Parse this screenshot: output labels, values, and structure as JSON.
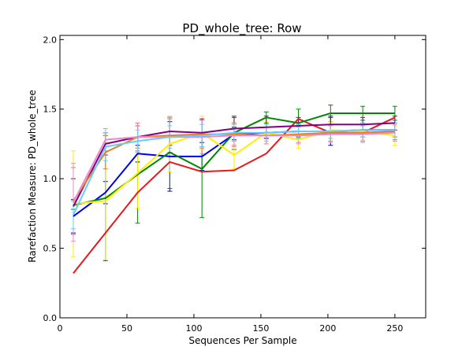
{
  "chart_data": {
    "type": "line",
    "title": "PD_whole_tree: Row",
    "xlabel": "Sequences Per Sample",
    "ylabel": "Rarefaction Measure: PD_whole_tree",
    "xlim": [
      0,
      273
    ],
    "ylim": [
      0.0,
      2.03
    ],
    "xticks": [
      0,
      50,
      100,
      150,
      200,
      250
    ],
    "xtick_labels": [
      "0",
      "50",
      "100",
      "150",
      "200",
      "250"
    ],
    "yticks": [
      0.0,
      0.5,
      1.0,
      1.5,
      2.0
    ],
    "ytick_labels": [
      "0.0",
      "0.5",
      "1.0",
      "1.5",
      "2.0"
    ],
    "grid": false,
    "x": [
      10,
      34,
      58,
      82,
      106,
      130,
      154,
      178,
      202,
      226,
      250
    ],
    "series": [
      {
        "color": "#e41a1c",
        "values": [
          0.32,
          0.61,
          0.9,
          1.12,
          1.05,
          1.06,
          1.18,
          1.43,
          1.33,
          1.33,
          1.44
        ],
        "err": [
          0.0,
          0.0,
          0.0,
          0.0,
          0.0,
          0.0,
          0.0,
          0.0,
          0.0,
          0.0,
          0.0
        ]
      },
      {
        "color": "#0000ee",
        "values": [
          0.73,
          0.9,
          1.18,
          1.16,
          1.16,
          1.32,
          1.33,
          1.34,
          1.34,
          1.35,
          1.35
        ],
        "err": [
          0.12,
          0.08,
          0.06,
          0.25,
          0.1,
          0.05,
          0.04,
          0.05,
          0.1,
          0.05,
          0.05
        ]
      },
      {
        "color": "#008800",
        "values": [
          0.81,
          0.86,
          1.03,
          1.19,
          1.07,
          1.33,
          1.44,
          1.4,
          1.47,
          1.47,
          1.47
        ],
        "err": [
          0.03,
          0.45,
          0.35,
          0.26,
          0.35,
          0.12,
          0.04,
          0.1,
          0.06,
          0.05,
          0.05
        ]
      },
      {
        "color": "#ffee00",
        "values": [
          0.82,
          0.84,
          1.04,
          1.25,
          1.33,
          1.17,
          1.33,
          1.28,
          1.35,
          1.34,
          1.31
        ],
        "err": [
          0.38,
          0.42,
          0.25,
          0.2,
          0.12,
          0.1,
          0.08,
          0.06,
          0.06,
          0.06,
          0.07
        ]
      },
      {
        "color": "#800080",
        "values": [
          0.8,
          1.25,
          1.3,
          1.34,
          1.33,
          1.36,
          1.37,
          1.38,
          1.39,
          1.39,
          1.4
        ],
        "err": [
          0.2,
          0.08,
          0.1,
          0.1,
          0.1,
          0.08,
          0.08,
          0.06,
          0.06,
          0.05,
          0.05
        ]
      },
      {
        "color": "#e08020",
        "values": [
          0.84,
          1.19,
          1.3,
          1.31,
          1.32,
          1.32,
          1.31,
          1.32,
          1.33,
          1.33,
          1.34
        ],
        "err": [
          0.24,
          0.12,
          0.08,
          0.12,
          0.1,
          0.08,
          0.06,
          0.06,
          0.06,
          0.06,
          0.06
        ]
      },
      {
        "color": "#ee88cc",
        "values": [
          0.83,
          1.28,
          1.3,
          1.3,
          1.3,
          1.31,
          1.31,
          1.31,
          1.32,
          1.32,
          1.33
        ],
        "err": [
          0.28,
          0.08,
          0.1,
          0.14,
          0.12,
          0.08,
          0.06,
          0.06,
          0.06,
          0.06,
          0.06
        ]
      },
      {
        "color": "#66ccff",
        "values": [
          0.74,
          1.23,
          1.27,
          1.3,
          1.31,
          1.33,
          1.33,
          1.34,
          1.34,
          1.35,
          1.35
        ],
        "err": [
          0.1,
          0.1,
          0.08,
          0.08,
          0.08,
          0.06,
          0.06,
          0.05,
          0.05,
          0.05,
          0.05
        ]
      }
    ]
  }
}
